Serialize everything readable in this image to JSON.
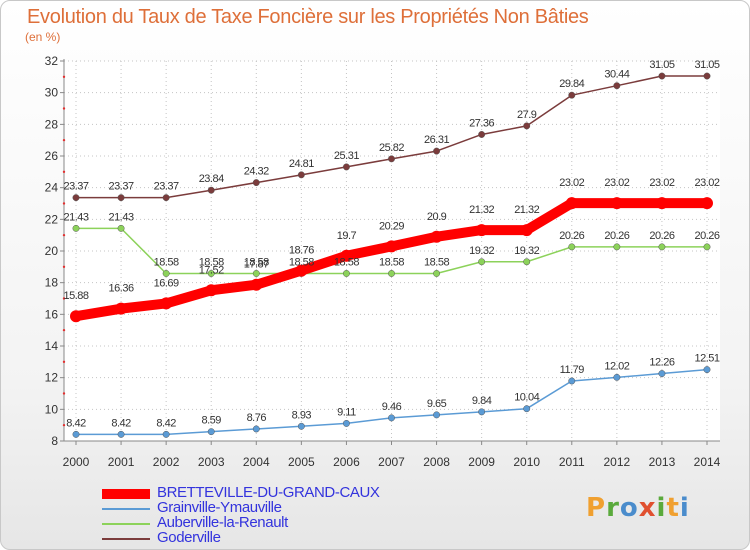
{
  "header": {
    "title": "Evolution du Taux de Taxe Foncière sur les Propriétés Non Bâties",
    "unit": "(en %)"
  },
  "chart_data": {
    "type": "line",
    "title": "Evolution du Taux de Taxe Foncière sur les Propriétés Non Bâties",
    "ylabel": "(en %)",
    "xlabel": "",
    "x": [
      "2000",
      "2001",
      "2002",
      "2003",
      "2004",
      "2005",
      "2006",
      "2007",
      "2008",
      "2009",
      "2010",
      "2011",
      "2012",
      "2013",
      "2014"
    ],
    "ylim": [
      8,
      32
    ],
    "yticks": [
      8,
      10,
      12,
      14,
      16,
      18,
      20,
      22,
      24,
      26,
      28,
      30,
      32
    ],
    "grid": true,
    "legend": "bottom-left",
    "series": [
      {
        "name": "BRETTEVILLE-DU-GRAND-CAUX",
        "color": "#ff0000",
        "values": [
          15.88,
          16.36,
          16.69,
          17.52,
          17.87,
          18.76,
          19.7,
          20.29,
          20.9,
          21.32,
          21.32,
          23.02,
          23.02,
          23.02,
          23.02
        ],
        "labels": [
          "15.88",
          "16.36",
          "16.69",
          "17.52",
          "17.87",
          "18.76",
          "19.7",
          "20.29",
          "20.9",
          "21.32",
          "21.32",
          "23.02",
          "23.02",
          "23.02",
          "23.02"
        ]
      },
      {
        "name": "Grainville-Ymauville",
        "color": "#5b9bd5",
        "values": [
          8.42,
          8.42,
          8.42,
          8.59,
          8.76,
          8.93,
          9.11,
          9.46,
          9.65,
          9.84,
          10.04,
          11.79,
          12.02,
          12.26,
          12.51
        ],
        "labels": [
          "8.42",
          "8.42",
          "8.42",
          "8.59",
          "8.76",
          "8.93",
          "9.11",
          "9.46",
          "9.65",
          "9.84",
          "10.04",
          "11.79",
          "12.02",
          "12.26",
          "12.51"
        ]
      },
      {
        "name": "Auberville-la-Renault",
        "color": "#8cd25a",
        "values": [
          21.43,
          21.43,
          18.58,
          18.58,
          18.58,
          18.58,
          18.58,
          18.58,
          18.58,
          19.32,
          19.32,
          20.26,
          20.26,
          20.26,
          20.26
        ],
        "labels": [
          "21.43",
          "21.43",
          "18.58",
          "18.58",
          "18.58",
          "18.58",
          "18.58",
          "18.58",
          "18.58",
          "19.32",
          "19.32",
          "20.26",
          "20.26",
          "20.26",
          "20.26"
        ]
      },
      {
        "name": "Goderville",
        "color": "#7b3c3c",
        "values": [
          23.37,
          23.37,
          23.37,
          23.84,
          24.32,
          24.81,
          25.31,
          25.82,
          26.31,
          27.36,
          27.9,
          29.84,
          30.44,
          31.05,
          31.05
        ],
        "labels": [
          "23.37",
          "23.37",
          "23.37",
          "23.84",
          "24.32",
          "24.81",
          "25.31",
          "25.82",
          "26.31",
          "27.36",
          "27.9",
          "29.84",
          "30.44",
          "31.05",
          "31.05"
        ]
      }
    ]
  },
  "brand": {
    "letters": [
      "P",
      "r",
      "o",
      "x",
      "i",
      "t",
      "i"
    ],
    "colors": [
      "#f0a030",
      "#5aaa3c",
      "#4a8ccc",
      "#e05030",
      "#5aaa3c",
      "#f0a030",
      "#4a8ccc"
    ]
  }
}
